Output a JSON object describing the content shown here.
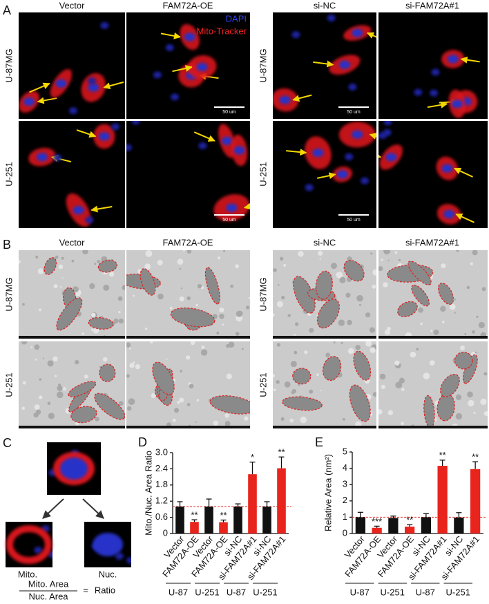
{
  "panels": {
    "A": {
      "label": "A",
      "columns": [
        "Vector",
        "FAM72A-OE",
        "si-NC",
        "si-FAM72A#1"
      ],
      "rows_left": [
        "U-87MG",
        "U-251"
      ],
      "rows_right": [
        "U-87MG",
        "U-251"
      ],
      "legend": [
        "DAPI",
        "Mito-Tracker"
      ],
      "scale_bars": [
        "50 um",
        "50 um",
        "50 um",
        "50 um"
      ]
    },
    "B": {
      "label": "B",
      "columns": [
        "Vector",
        "FAM72A-OE",
        "si-NC",
        "si-FAM72A#1"
      ],
      "rows_left": [
        "U-87MG",
        "U-251"
      ],
      "rows_right": [
        "U-87MG",
        "U-251"
      ]
    },
    "C": {
      "label": "C",
      "left": "Mito.",
      "right": "Nuc.",
      "numerator": "Mito. Area",
      "denominator": "Nuc. Area",
      "equals": "=",
      "result": "Ratio"
    }
  },
  "chart_data": [
    {
      "type": "bar",
      "panel_label": "D",
      "y_label": "Mito./Nuc. Area Ratio",
      "categories": [
        "Vector",
        "FAM72A-OE",
        "Vector",
        "FAM72A-OE",
        "si-NC",
        "si-FAM72A#1",
        "si-NC",
        "si-FAM72A#1"
      ],
      "groups": [
        "U-87",
        "U-251",
        "U-87",
        "U-251"
      ],
      "values": [
        1.0,
        0.43,
        1.0,
        0.42,
        1.0,
        2.2,
        1.0,
        2.42
      ],
      "errors": [
        0.18,
        0.08,
        0.28,
        0.08,
        0.1,
        0.45,
        0.18,
        0.42
      ],
      "colors": [
        "#111111",
        "#e8241c",
        "#111111",
        "#e8241c",
        "#111111",
        "#e8241c",
        "#111111",
        "#e8241c"
      ],
      "significance": [
        null,
        "**",
        null,
        "**",
        null,
        "*",
        null,
        "**"
      ],
      "ylim": [
        0,
        3
      ],
      "yticks": [
        0,
        0.6,
        1.2,
        1.8,
        2.4,
        {
          "value": 3,
          "label": "3.0"
        }
      ],
      "reference_line": 1,
      "reference_color": "#e8241c"
    },
    {
      "type": "bar",
      "panel_label": "E",
      "y_label": "Relative Area (nm²)",
      "categories": [
        "Vector",
        "FAM72A-OE",
        "Vector",
        "FAM72A-OE",
        "si-NC",
        "si-FAM72A#1",
        "si-NC",
        "si-FAM72A#1"
      ],
      "groups": [
        "U-87",
        "U-251",
        "U-87",
        "U-251"
      ],
      "values": [
        1.0,
        0.35,
        0.95,
        0.42,
        1.0,
        4.15,
        0.98,
        3.95
      ],
      "errors": [
        0.3,
        0.1,
        0.12,
        0.12,
        0.22,
        0.35,
        0.3,
        0.45
      ],
      "colors": [
        "#111111",
        "#e8241c",
        "#111111",
        "#e8241c",
        "#111111",
        "#e8241c",
        "#111111",
        "#e8241c"
      ],
      "significance": [
        null,
        "***",
        null,
        "**",
        null,
        "**",
        null,
        "**"
      ],
      "ylim": [
        0,
        5
      ],
      "yticks": [
        0,
        1,
        2,
        3,
        4,
        5
      ],
      "reference_line": 1,
      "reference_color": "#e8241c"
    }
  ]
}
